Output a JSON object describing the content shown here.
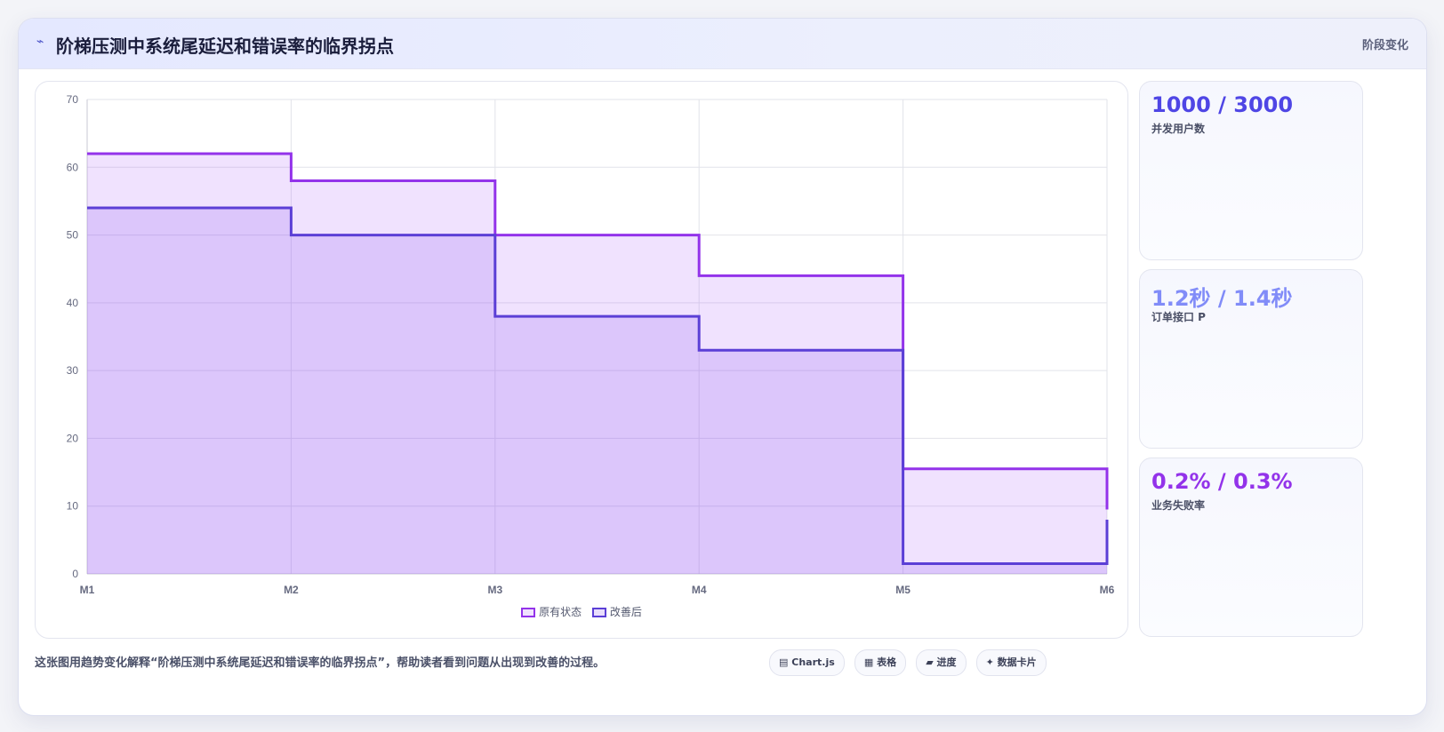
{
  "header": {
    "icon": "trend-icon",
    "title": "阶梯压测中系统尾延迟和错误率的临界拐点",
    "badge": "阶段变化"
  },
  "chart_data": {
    "type": "area",
    "step": true,
    "categories": [
      "M1",
      "M2",
      "M3",
      "M4",
      "M5",
      "M6"
    ],
    "series": [
      {
        "name": "原有状态",
        "values": [
          62,
          58,
          50,
          44,
          15.5,
          9.5
        ],
        "color": "#9333ea",
        "fill": "rgba(168,85,247,0.17)"
      },
      {
        "name": "改善后",
        "values": [
          54,
          50,
          38,
          33,
          1.5,
          8
        ],
        "color": "#5b3fd6",
        "fill": "rgba(124,58,237,0.17)"
      }
    ],
    "ylim": [
      0,
      70
    ],
    "yticks": [
      0,
      10,
      20,
      30,
      40,
      50,
      60,
      70
    ],
    "grid": true,
    "legend": "bottom",
    "title": "",
    "xlabel": "",
    "ylabel": ""
  },
  "stats": [
    {
      "value": "1000 / 3000",
      "label": "并发用户数",
      "color": "#4f46e5"
    },
    {
      "value": "1.2秒 / 1.4秒",
      "label": "订单接口 P",
      "color": "#818cf8"
    },
    {
      "value": "0.2% / 0.3%",
      "label": "业务失败率",
      "color": "#9333ea"
    }
  ],
  "caption": "这张图用趋势变化解释“阶梯压测中系统尾延迟和错误率的临界拐点”，帮助读者看到问题从出现到改善的过程。",
  "tags": [
    {
      "icon": "▤",
      "label": "Chart.js"
    },
    {
      "icon": "▦",
      "label": "表格"
    },
    {
      "icon": "▰",
      "label": "进度"
    },
    {
      "icon": "✦",
      "label": "数据卡片"
    }
  ]
}
